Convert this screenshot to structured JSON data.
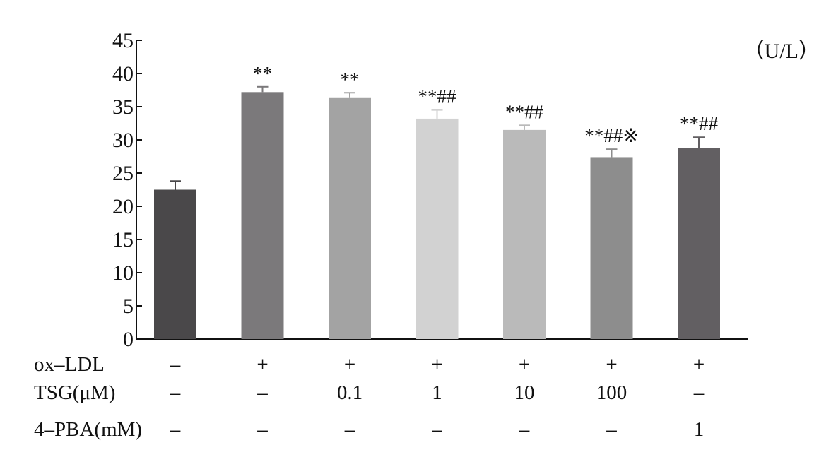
{
  "chart_data": {
    "type": "bar",
    "title": "",
    "xlabel": "",
    "ylabel": "",
    "unit": "（U/L）",
    "ylim": [
      0,
      45
    ],
    "yticks": [
      0,
      5,
      10,
      15,
      20,
      25,
      30,
      35,
      40,
      45
    ],
    "grid": false,
    "bars": [
      {
        "value": 22.5,
        "error": 1.3,
        "color": "#4a484a",
        "significance": ""
      },
      {
        "value": 37.2,
        "error": 0.8,
        "color": "#7b797b",
        "significance": "**"
      },
      {
        "value": 36.3,
        "error": 0.8,
        "color": "#a3a3a3",
        "significance": "**"
      },
      {
        "value": 33.2,
        "error": 1.3,
        "color": "#d2d2d2",
        "significance": "**##"
      },
      {
        "value": 31.5,
        "error": 0.7,
        "color": "#bababa",
        "significance": "**##"
      },
      {
        "value": 27.4,
        "error": 1.2,
        "color": "#8d8d8d",
        "significance": "**##※"
      },
      {
        "value": 28.8,
        "error": 1.6,
        "color": "#625f62",
        "significance": "**##"
      }
    ],
    "table": [
      {
        "label": "ox–LDL",
        "values": [
          "–",
          "+",
          "+",
          "+",
          "+",
          "+",
          "+"
        ]
      },
      {
        "label": "TSG(μM)",
        "values": [
          "–",
          "–",
          "0.1",
          "1",
          "10",
          "100",
          "–"
        ]
      },
      {
        "label": "4–PBA(mM)",
        "values": [
          "–",
          "–",
          "–",
          "–",
          "–",
          "–",
          "1"
        ]
      }
    ]
  }
}
